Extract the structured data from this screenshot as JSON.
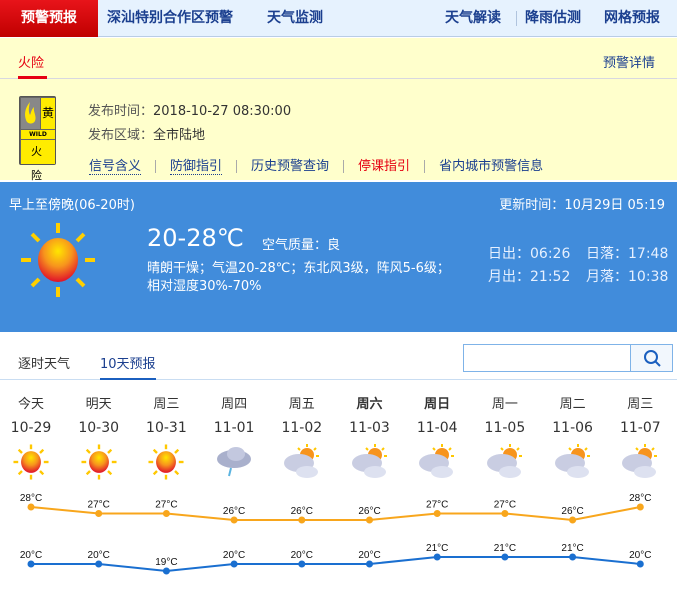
{
  "nav": {
    "active": "预警预报",
    "items": [
      "深汕特别合作区预警",
      "天气监测"
    ],
    "right": [
      "天气解读",
      "降雨估测",
      "网格预报"
    ]
  },
  "warning": {
    "tab": "火险",
    "detail_link": "预警详情",
    "signal": {
      "level": "黄",
      "en": "WILD FIRE",
      "name": "火 险",
      "color": "#ffec00"
    },
    "time_label": "发布时间：",
    "time": "2018-10-27 08:30:00",
    "area_label": "发布区域：",
    "area": "全市陆地",
    "links": [
      "信号含义",
      "防御指引",
      "历史预警查询",
      "停课指引",
      "省内城市预警信息"
    ]
  },
  "today": {
    "period": "早上至傍晚(06-20时)",
    "update_label": "更新时间：",
    "update": "10月29日 05:19",
    "temp": "20-28℃",
    "aqi_label": "空气质量：",
    "aqi": "良",
    "desc1": "晴朗干燥；气温20-28℃；东北风3级，阵风5-6级；",
    "desc2": "相对湿度30%-70%",
    "sunrise": "日出：06:26",
    "sunset": "日落：17:48",
    "moonrise": "月出：21:52",
    "moonset": "月落：10:38",
    "icon": "sunny-icon"
  },
  "forecast_tabs": [
    "逐时天气",
    "10天预报"
  ],
  "search": {
    "value": "",
    "placeholder": ""
  },
  "days": [
    {
      "week": "今天",
      "date": "10-29",
      "icon": "sunny",
      "bold": false
    },
    {
      "week": "明天",
      "date": "10-30",
      "icon": "sunny",
      "bold": false
    },
    {
      "week": "周三",
      "date": "10-31",
      "icon": "sunny",
      "bold": false
    },
    {
      "week": "周四",
      "date": "11-01",
      "icon": "rain",
      "bold": false
    },
    {
      "week": "周五",
      "date": "11-02",
      "icon": "partly-cloudy",
      "bold": false
    },
    {
      "week": "周六",
      "date": "11-03",
      "icon": "partly-cloudy",
      "bold": true
    },
    {
      "week": "周日",
      "date": "11-04",
      "icon": "partly-cloudy",
      "bold": true
    },
    {
      "week": "周一",
      "date": "11-05",
      "icon": "partly-cloudy",
      "bold": false
    },
    {
      "week": "周二",
      "date": "11-06",
      "icon": "partly-cloudy",
      "bold": false
    },
    {
      "week": "周三",
      "date": "11-07",
      "icon": "partly-cloudy",
      "bold": false
    }
  ],
  "chart_data": {
    "type": "line",
    "categories": [
      "10-29",
      "10-30",
      "10-31",
      "11-01",
      "11-02",
      "11-03",
      "11-04",
      "11-05",
      "11-06",
      "11-07"
    ],
    "unit": "°C",
    "series": [
      {
        "values": [
          28,
          27,
          27,
          26,
          26,
          26,
          27,
          27,
          26,
          28
        ],
        "color": "#f8a61c"
      },
      {
        "values": [
          20,
          20,
          19,
          20,
          20,
          20,
          21,
          21,
          21,
          20
        ],
        "color": "#1a6fd0"
      }
    ]
  }
}
